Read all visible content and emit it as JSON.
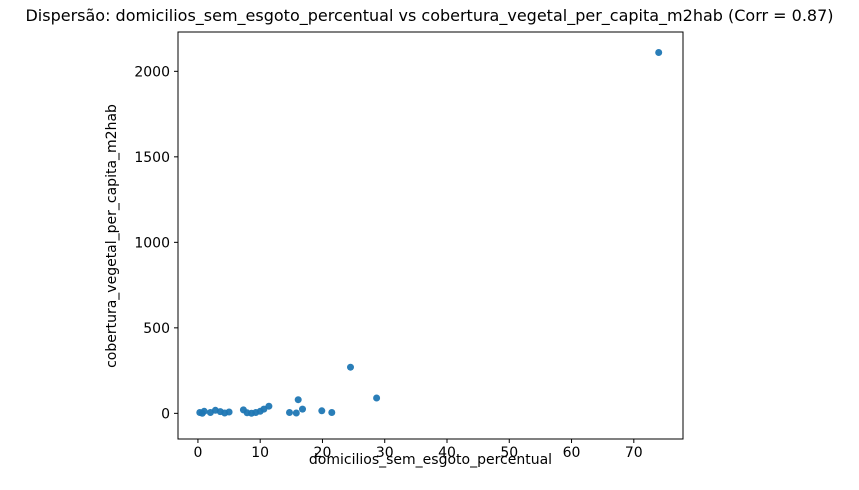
{
  "title": "Dispersão: domicilios_sem_esgoto_percentual vs cobertura_vegetal_per_capita_m2hab (Corr = 0.87)",
  "chart_data": {
    "type": "scatter",
    "title": "Dispersão: domicilios_sem_esgoto_percentual vs cobertura_vegetal_per_capita_m2hab (Corr = 0.87)",
    "xlabel": "domicilios_sem_esgoto_percentual",
    "ylabel": "cobertura_vegetal_per_capita_m2hab",
    "correlation": 0.87,
    "marker_color": "#1f77b4",
    "background_color": "#ffffff",
    "axes_edge_color": "#000000",
    "grid": false,
    "legend": false,
    "xlim": [
      -3.2,
      77.9
    ],
    "ylim": [
      -150,
      2230
    ],
    "xticks": [
      0,
      10,
      20,
      30,
      40,
      50,
      60,
      70
    ],
    "yticks": [
      0,
      500,
      1000,
      1500,
      2000
    ],
    "points": [
      [
        0.3,
        5
      ],
      [
        0.7,
        0
      ],
      [
        1.0,
        12
      ],
      [
        2.0,
        5
      ],
      [
        2.8,
        18
      ],
      [
        3.6,
        10
      ],
      [
        4.3,
        2
      ],
      [
        5.0,
        8
      ],
      [
        7.3,
        20
      ],
      [
        7.9,
        3
      ],
      [
        8.6,
        0
      ],
      [
        9.3,
        5
      ],
      [
        10.0,
        12
      ],
      [
        10.6,
        25
      ],
      [
        11.4,
        42
      ],
      [
        14.7,
        5
      ],
      [
        15.8,
        2
      ],
      [
        16.1,
        80
      ],
      [
        16.8,
        25
      ],
      [
        19.9,
        15
      ],
      [
        21.5,
        5
      ],
      [
        24.5,
        270
      ],
      [
        28.7,
        90
      ],
      [
        74.0,
        2110
      ]
    ]
  }
}
